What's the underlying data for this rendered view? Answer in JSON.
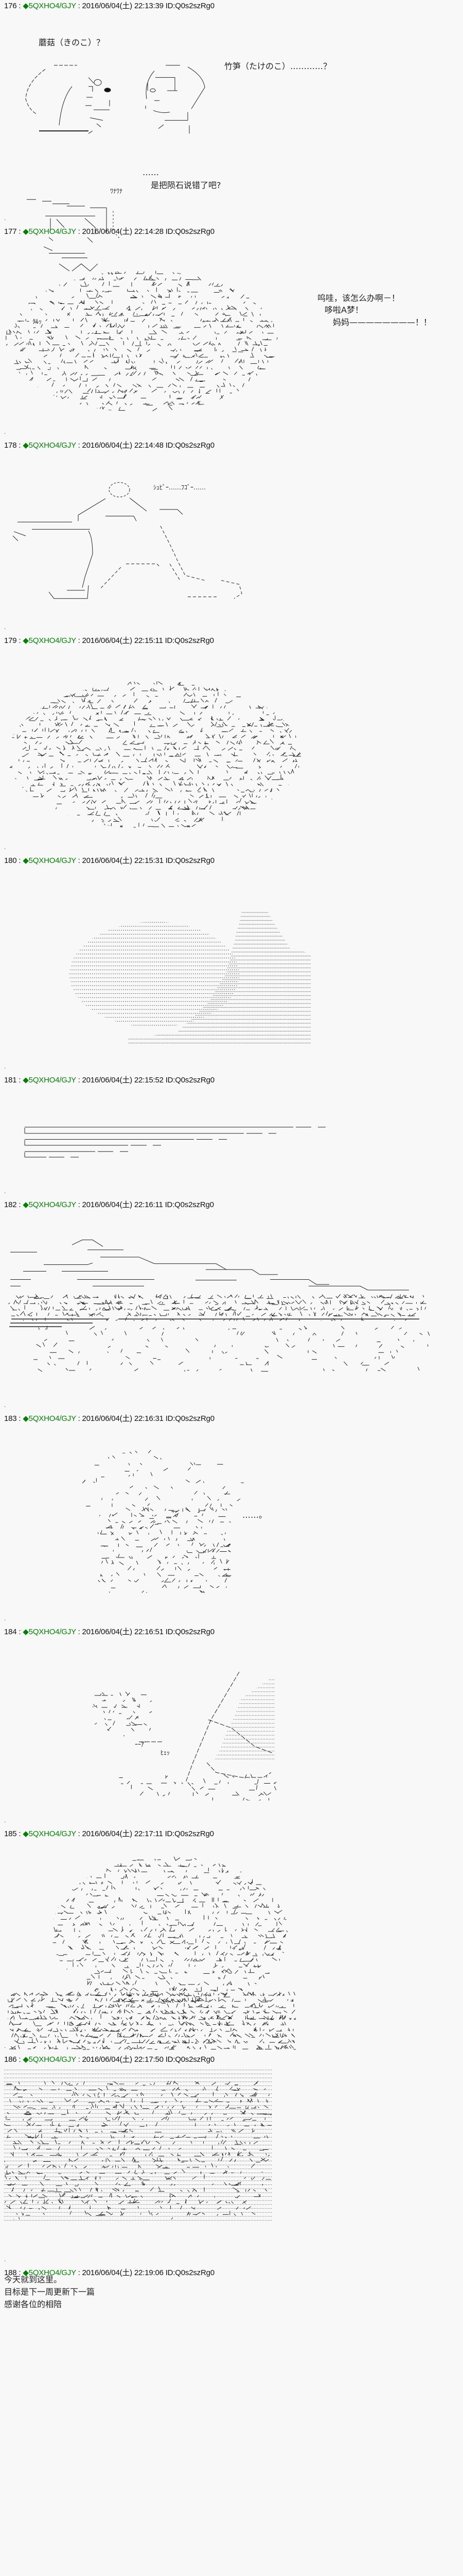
{
  "meta": {
    "separator": " : ",
    "dot": "."
  },
  "posts": [
    {
      "number": "176",
      "name": "◆5QXHO4/GJY",
      "date": "2016/06/04(土) 22:13:39",
      "id": "ID:Q0s2szRg0",
      "lines": [
        "蘑菇（きのこ）？",
        "竹笋（たけのこ）…………？",
        "ﾜﾅﾜﾅ",
        "……",
        "是把陨石说错了吧?"
      ]
    },
    {
      "number": "177",
      "name": "◆5QXHO4/GJY",
      "date": "2016/06/04(土) 22:14:28",
      "id": "ID:Q0s2szRg0",
      "lines": [
        "ｸﾙｯ",
        "呜哇，该怎么办啊－！",
        "哆啦A梦！",
        "妈妈————————！！"
      ]
    },
    {
      "number": "178",
      "name": "◆5QXHO4/GJY",
      "date": "2016/06/04(土) 22:14:48",
      "id": "ID:Q0s2szRg0",
      "lines": [
        "ｼｭﾋﾟｰ……ﾌｺﾞｰ……"
      ]
    },
    {
      "number": "179",
      "name": "◆5QXHO4/GJY",
      "date": "2016/06/04(土) 22:15:11",
      "id": "ID:Q0s2szRg0",
      "lines": []
    },
    {
      "number": "180",
      "name": "◆5QXHO4/GJY",
      "date": "2016/06/04(土) 22:15:31",
      "id": "ID:Q0s2szRg0",
      "lines": []
    },
    {
      "number": "181",
      "name": "◆5QXHO4/GJY",
      "date": "2016/06/04(土) 22:15:52",
      "id": "ID:Q0s2szRg0",
      "lines": []
    },
    {
      "number": "182",
      "name": "◆5QXHO4/GJY",
      "date": "2016/06/04(土) 22:16:11",
      "id": "ID:Q0s2szRg0",
      "lines": []
    },
    {
      "number": "183",
      "name": "◆5QXHO4/GJY",
      "date": "2016/06/04(土) 22:16:31",
      "id": "ID:Q0s2szRg0",
      "lines": [
        "……。"
      ]
    },
    {
      "number": "184",
      "name": "◆5QXHO4/GJY",
      "date": "2016/06/04(土) 22:16:51",
      "id": "ID:Q0s2szRg0",
      "lines": [
        "ｰｰｱﾞ",
        "ﾋｪｯ"
      ]
    },
    {
      "number": "185",
      "name": "◆5QXHO4/GJY",
      "date": "2016/06/04(土) 22:17:11",
      "id": "ID:Q0s2szRg0",
      "lines": []
    },
    {
      "number": "186",
      "name": "◆5QXHO4/GJY",
      "date": "2016/06/04(土) 22:17:50",
      "id": "ID:Q0s2szRg0",
      "lines": []
    },
    {
      "number": "188",
      "name": "◆5QXHO4/GJY",
      "date": "2016/06/04(土) 22:19:06",
      "id": "ID:Q0s2szRg0",
      "lines": [
        "今天就到这里。",
        "目标是下一周更新下一篇",
        "感谢各位的相陪"
      ]
    }
  ],
  "colors": {
    "background": "#f8f8f8",
    "trip_name": "#008000",
    "text": "#111111"
  }
}
